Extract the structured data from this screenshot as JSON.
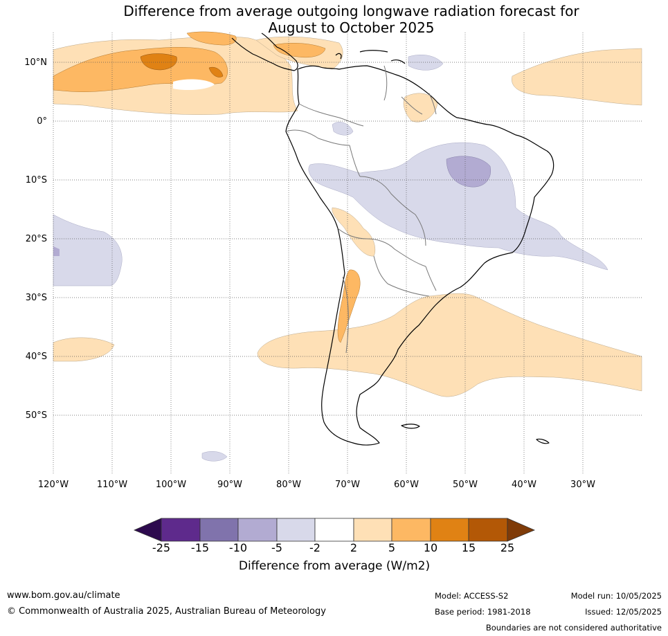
{
  "title_line1": "Difference from average outgoing longwave radiation forecast for",
  "title_line2": "August to October 2025",
  "lat_labels": [
    "10°N",
    "0°",
    "10°S",
    "20°S",
    "30°S",
    "40°S",
    "50°S"
  ],
  "lon_labels": [
    "120°W",
    "110°W",
    "100°W",
    "90°W",
    "80°W",
    "70°W",
    "60°W",
    "50°W",
    "40°W",
    "30°W"
  ],
  "colorbar": {
    "ticks": [
      "-25",
      "-15",
      "-10",
      "-5",
      "-2",
      "2",
      "5",
      "10",
      "15",
      "25"
    ],
    "colors": [
      "#2d0a4e",
      "#5e2a8c",
      "#8073ac",
      "#b2abd2",
      "#d8d9ea",
      "#ffffff",
      "#fee0b6",
      "#fdb863",
      "#e08214",
      "#b35806",
      "#7f3b08"
    ],
    "label": "Difference from average (W/m2)"
  },
  "footer": {
    "url": "www.bom.gov.au/climate",
    "copyright": "© Commonwealth of Australia 2025, Australian Bureau of Meteorology",
    "model": "Model: ACCESS-S2",
    "base_period": "Base period: 1981-2018",
    "model_run": "Model run: 10/05/2025",
    "issued": "Issued: 12/05/2025",
    "disclaimer": "Boundaries are not considered authoritative"
  }
}
